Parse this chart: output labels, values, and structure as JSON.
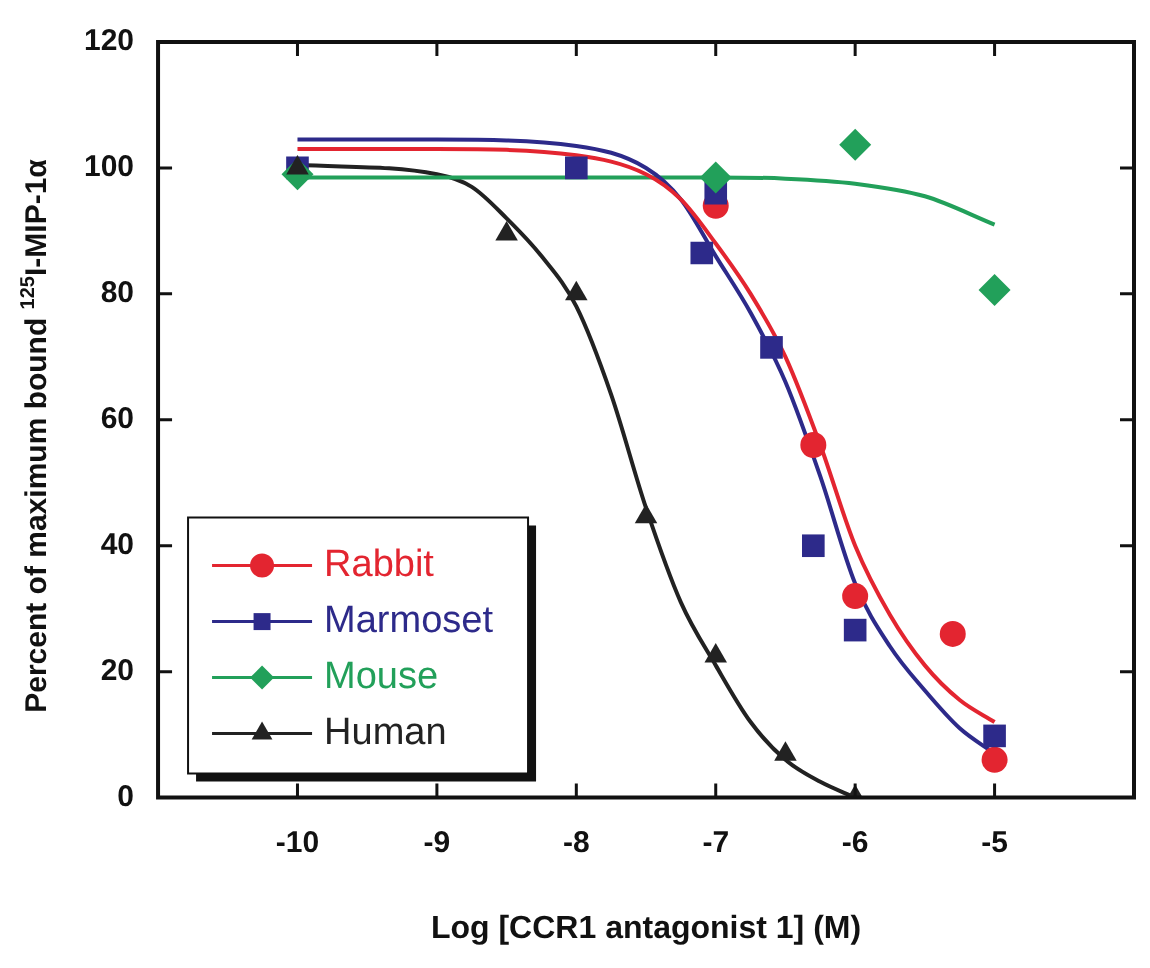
{
  "chart_data": {
    "type": "scatter",
    "xlabel": "Log [CCR1 antagonist 1] (M)",
    "ylabel": "Percent of maximum bound $^{125}$I-MIP-1α",
    "xlim": [
      -11,
      -4
    ],
    "xticks": [
      -10,
      -9,
      -8,
      -7,
      -6,
      -5
    ],
    "ylim": [
      0,
      120
    ],
    "yticks": [
      0,
      20,
      40,
      60,
      80,
      100,
      120
    ],
    "grid": false,
    "legend": "bottom left",
    "series": [
      {
        "name": "Rabbit",
        "marker": "circle",
        "color": "#e32530",
        "x": [
          -7,
          -6.3,
          -6,
          -5.3,
          -5
        ],
        "values": [
          94,
          56,
          32,
          26,
          6
        ]
      },
      {
        "name": "Marmoset",
        "marker": "square",
        "color": "#2d2a8a",
        "x": [
          -10,
          -8,
          -7,
          -7.1,
          -6.6,
          -6.3,
          -6,
          -5
        ],
        "values": [
          100,
          100,
          96,
          86.5,
          71.5,
          40,
          26.6,
          9.8
        ]
      },
      {
        "name": "Mouse",
        "marker": "diamond",
        "color": "#22a05a",
        "x": [
          -10,
          -7,
          -6,
          -5
        ],
        "values": [
          99,
          98.5,
          103.7,
          80.6
        ]
      },
      {
        "name": "Human",
        "marker": "triangle",
        "color": "#222222",
        "x": [
          -10,
          -8.5,
          -8,
          -7.5,
          -7,
          -6.5,
          -6
        ],
        "values": [
          100,
          89.5,
          80,
          44.6,
          22.5,
          6.9,
          0
        ]
      },
      {
        "type": "line",
        "marker": "none",
        "color": "#e32530",
        "x": [
          -10,
          -9,
          -8,
          -7.5,
          -7.25,
          -7,
          -6.75,
          -6.5,
          -6.25,
          -6,
          -5.75,
          -5.5,
          -5.25,
          -5
        ],
        "values": [
          103,
          103,
          102,
          99,
          95,
          88,
          80,
          70,
          56,
          40,
          29,
          21,
          15.5,
          12
        ]
      },
      {
        "type": "line",
        "marker": "none",
        "color": "#2d2a8a",
        "x": [
          -10,
          -9,
          -8,
          -7.5,
          -7.25,
          -7,
          -6.75,
          -6.5,
          -6.25,
          -6,
          -5.75,
          -5.5,
          -5.25,
          -5
        ],
        "values": [
          104.5,
          104.5,
          103.5,
          100,
          95,
          86,
          77,
          66,
          51,
          34,
          24,
          17,
          11,
          7
        ]
      },
      {
        "type": "line",
        "marker": "none",
        "color": "#22a05a",
        "x": [
          -10,
          -9,
          -8,
          -7,
          -6.5,
          -6,
          -5.5,
          -5
        ],
        "values": [
          98.5,
          98.5,
          98.5,
          98.5,
          98.3,
          97.5,
          95.5,
          91
        ]
      },
      {
        "type": "line",
        "marker": "none",
        "color": "#222222",
        "x": [
          -10,
          -9,
          -8.75,
          -8.5,
          -8.25,
          -8,
          -7.75,
          -7.5,
          -7.25,
          -7,
          -6.75,
          -6.5,
          -6.25,
          -6
        ],
        "values": [
          100.5,
          99,
          97,
          92,
          86,
          78,
          64,
          46,
          31,
          21,
          12,
          6,
          2.5,
          0
        ]
      }
    ]
  }
}
